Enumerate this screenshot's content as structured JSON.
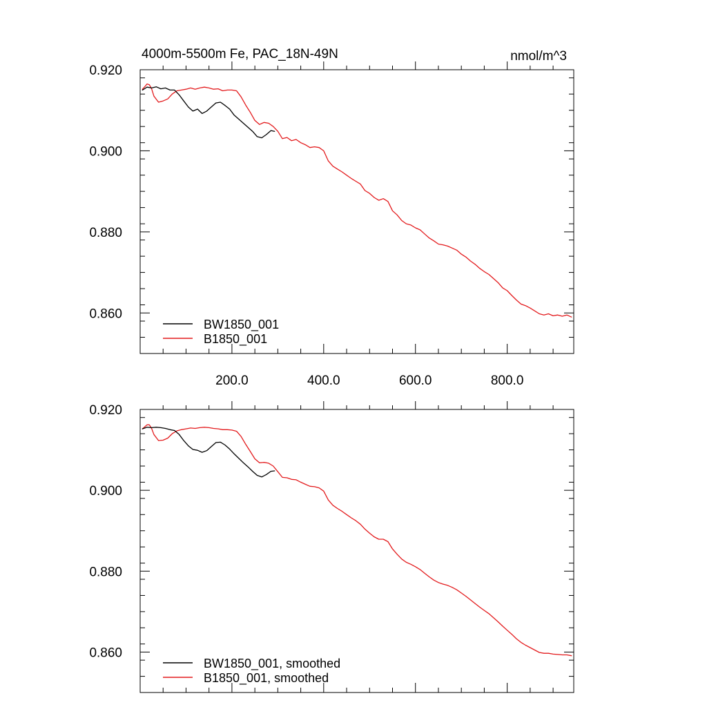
{
  "chart_data": [
    {
      "type": "line",
      "title": "4000m-5500m Fe, PAC_18N-49N",
      "units": "nmol/m^3",
      "xlim": [
        0,
        945
      ],
      "ylim": [
        0.85,
        0.92
      ],
      "x_ticks": [
        200,
        400,
        600,
        800
      ],
      "x_tick_labels": [
        "200.0",
        "400.0",
        "600.0",
        "800.0"
      ],
      "y_ticks": [
        0.86,
        0.88,
        0.9,
        0.92
      ],
      "y_tick_labels": [
        "0.860",
        "0.880",
        "0.900",
        "0.920"
      ],
      "grid": false,
      "legend_position": "bottom-left",
      "series": [
        {
          "name": "BW1850_001",
          "color": "#000000",
          "x": [
            5,
            15,
            25,
            35,
            45,
            55,
            65,
            75,
            85,
            95,
            105,
            115,
            125,
            135,
            145,
            155,
            165,
            175,
            185,
            195,
            205,
            215,
            225,
            235,
            245,
            255,
            265,
            275,
            285,
            293
          ],
          "y": [
            0.915,
            0.9157,
            0.9155,
            0.9158,
            0.9153,
            0.9155,
            0.915,
            0.915,
            0.9138,
            0.9123,
            0.9108,
            0.9098,
            0.9103,
            0.9092,
            0.9098,
            0.9108,
            0.9118,
            0.912,
            0.9112,
            0.9103,
            0.9088,
            0.9078,
            0.9068,
            0.9058,
            0.9048,
            0.9035,
            0.9032,
            0.904,
            0.905,
            0.9048
          ]
        },
        {
          "name": "B1850_001",
          "color": "#e31a1c",
          "x": [
            5,
            10,
            15,
            20,
            25,
            30,
            40,
            50,
            60,
            70,
            80,
            90,
            100,
            110,
            120,
            130,
            140,
            150,
            160,
            170,
            180,
            190,
            200,
            210,
            220,
            230,
            240,
            250,
            260,
            270,
            280,
            290,
            300,
            310,
            320,
            330,
            340,
            350,
            360,
            370,
            380,
            390,
            400,
            410,
            420,
            430,
            440,
            450,
            460,
            470,
            480,
            490,
            500,
            510,
            520,
            530,
            540,
            550,
            560,
            570,
            580,
            590,
            600,
            610,
            620,
            630,
            640,
            650,
            660,
            670,
            680,
            690,
            700,
            710,
            720,
            730,
            740,
            750,
            760,
            770,
            780,
            790,
            800,
            810,
            820,
            830,
            840,
            850,
            860,
            870,
            880,
            890,
            900,
            910,
            920,
            930,
            940
          ],
          "y": [
            0.9152,
            0.9158,
            0.9165,
            0.9163,
            0.9153,
            0.9135,
            0.912,
            0.9123,
            0.9128,
            0.914,
            0.9148,
            0.915,
            0.9152,
            0.9155,
            0.9152,
            0.9155,
            0.9157,
            0.9155,
            0.9152,
            0.9153,
            0.9148,
            0.915,
            0.915,
            0.9148,
            0.9133,
            0.9113,
            0.9095,
            0.9075,
            0.9065,
            0.907,
            0.9068,
            0.906,
            0.9048,
            0.903,
            0.9033,
            0.9025,
            0.9028,
            0.902,
            0.9015,
            0.9008,
            0.901,
            0.9008,
            0.9,
            0.8975,
            0.8962,
            0.8955,
            0.8948,
            0.894,
            0.8932,
            0.8925,
            0.8918,
            0.8902,
            0.8895,
            0.8885,
            0.8878,
            0.8882,
            0.8875,
            0.8852,
            0.8842,
            0.8828,
            0.882,
            0.8817,
            0.881,
            0.8805,
            0.8795,
            0.8785,
            0.8778,
            0.877,
            0.8768,
            0.8765,
            0.876,
            0.8755,
            0.8745,
            0.8738,
            0.8728,
            0.872,
            0.871,
            0.8702,
            0.8695,
            0.8685,
            0.8675,
            0.8662,
            0.8655,
            0.8643,
            0.8632,
            0.8622,
            0.8618,
            0.8612,
            0.8605,
            0.8598,
            0.8595,
            0.8598,
            0.8593,
            0.8595,
            0.8592,
            0.8595,
            0.859
          ]
        }
      ]
    },
    {
      "type": "line",
      "title": "",
      "xlim": [
        0,
        945
      ],
      "ylim": [
        0.85,
        0.92
      ],
      "x_ticks": [
        200,
        400,
        600,
        800
      ],
      "x_tick_labels": [],
      "y_ticks": [
        0.86,
        0.88,
        0.9,
        0.92
      ],
      "y_tick_labels": [
        "0.860",
        "0.880",
        "0.900",
        "0.920"
      ],
      "grid": false,
      "legend_position": "bottom-left",
      "series": [
        {
          "name": "BW1850_001, smoothed",
          "color": "#000000",
          "x": [
            5,
            15,
            25,
            35,
            45,
            55,
            65,
            75,
            85,
            95,
            105,
            115,
            125,
            135,
            145,
            155,
            165,
            175,
            185,
            195,
            205,
            215,
            225,
            235,
            245,
            255,
            265,
            275,
            285,
            293
          ],
          "y": [
            0.9152,
            0.9156,
            0.9155,
            0.9156,
            0.9155,
            0.9153,
            0.915,
            0.9148,
            0.9138,
            0.9123,
            0.911,
            0.9101,
            0.9099,
            0.9094,
            0.9098,
            0.9108,
            0.9118,
            0.9119,
            0.9112,
            0.9102,
            0.909,
            0.9079,
            0.9068,
            0.9058,
            0.9047,
            0.9037,
            0.9033,
            0.9039,
            0.9047,
            0.9048
          ]
        },
        {
          "name": "B1850_001, smoothed",
          "color": "#e31a1c",
          "x": [
            5,
            10,
            15,
            20,
            25,
            30,
            40,
            50,
            60,
            70,
            80,
            90,
            100,
            110,
            120,
            130,
            140,
            150,
            160,
            170,
            180,
            190,
            200,
            210,
            220,
            230,
            240,
            250,
            260,
            270,
            280,
            290,
            300,
            310,
            320,
            330,
            340,
            350,
            360,
            370,
            380,
            390,
            400,
            410,
            420,
            430,
            440,
            450,
            460,
            470,
            480,
            490,
            500,
            510,
            520,
            530,
            540,
            550,
            560,
            570,
            580,
            590,
            600,
            610,
            620,
            630,
            640,
            650,
            660,
            670,
            680,
            690,
            700,
            710,
            720,
            730,
            740,
            750,
            760,
            770,
            780,
            790,
            800,
            810,
            820,
            830,
            840,
            850,
            860,
            870,
            880,
            890,
            900,
            910,
            920,
            930,
            940
          ],
          "y": [
            0.9152,
            0.9157,
            0.9162,
            0.9162,
            0.9153,
            0.9138,
            0.9123,
            0.9124,
            0.9129,
            0.914,
            0.9147,
            0.915,
            0.9152,
            0.9154,
            0.9153,
            0.9155,
            0.9156,
            0.9155,
            0.9153,
            0.9152,
            0.915,
            0.915,
            0.9149,
            0.9146,
            0.9133,
            0.9114,
            0.9096,
            0.9078,
            0.9068,
            0.9069,
            0.9067,
            0.906,
            0.9046,
            0.9032,
            0.9031,
            0.9027,
            0.9026,
            0.902,
            0.9015,
            0.901,
            0.9009,
            0.9006,
            0.8998,
            0.8976,
            0.8963,
            0.8955,
            0.8948,
            0.894,
            0.8932,
            0.8925,
            0.8916,
            0.8904,
            0.8894,
            0.8885,
            0.8879,
            0.8879,
            0.8873,
            0.8855,
            0.8842,
            0.883,
            0.8822,
            0.8817,
            0.8811,
            0.8804,
            0.8795,
            0.8786,
            0.8778,
            0.8772,
            0.8768,
            0.8765,
            0.876,
            0.8754,
            0.8746,
            0.8738,
            0.8729,
            0.872,
            0.8711,
            0.8703,
            0.8695,
            0.8685,
            0.8675,
            0.8664,
            0.8654,
            0.8644,
            0.8633,
            0.8624,
            0.8617,
            0.8611,
            0.8605,
            0.8599,
            0.8597,
            0.8597,
            0.8595,
            0.8594,
            0.8593,
            0.8593,
            0.8591
          ]
        }
      ]
    }
  ]
}
